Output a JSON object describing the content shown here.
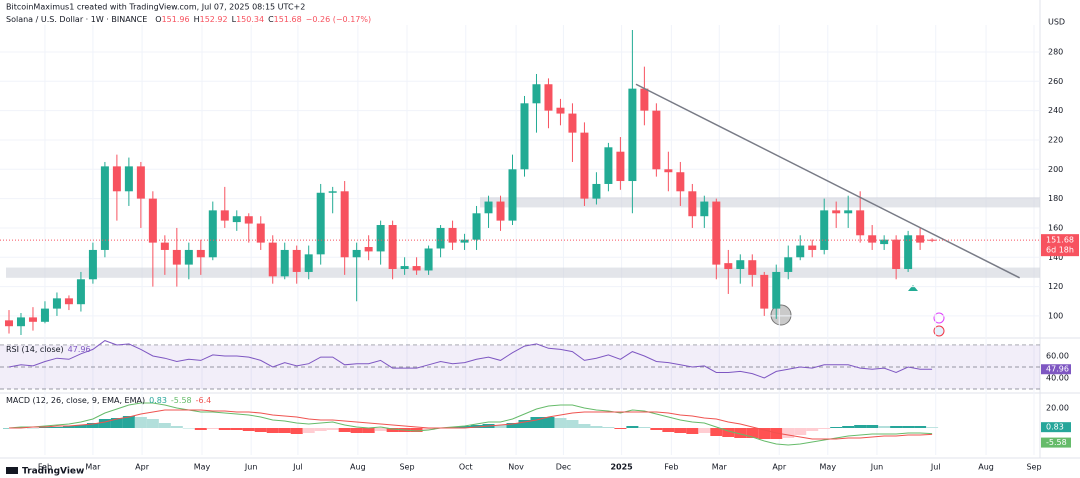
{
  "chart_data": {
    "type": "candlestick",
    "credit": "BitcoinMaximus1 created with TradingView.com, Jul 07, 2025 08:15 UTC+2",
    "title": "Solana / U.S. Dollar · 1W · BINANCE",
    "ohlc_labels": [
      "O",
      "H",
      "L",
      "C"
    ],
    "change": "−0.26 (−0.17%)",
    "currency": "USD",
    "countdown": "6d 18h",
    "brand": "TradingView",
    "up_color": "#22ab94",
    "down_color": "#f7525f",
    "candles": {
      "open": [
        97,
        93,
        99,
        96,
        105,
        112,
        108,
        125,
        145,
        202,
        185,
        202,
        180,
        150,
        145,
        135,
        145,
        140,
        172,
        164,
        168,
        163,
        150,
        127,
        145,
        130,
        142,
        184,
        185,
        140,
        147,
        144,
        162,
        132,
        134,
        131,
        146,
        160,
        150,
        152,
        170,
        178,
        165,
        200,
        245,
        258,
        242,
        238,
        225,
        180,
        190,
        212,
        192,
        255,
        240,
        200,
        198,
        185,
        168,
        178,
        136,
        132,
        138,
        128,
        105,
        130,
        140,
        148,
        145,
        172,
        170,
        172,
        155,
        149,
        152,
        132,
        155,
        151.96
      ],
      "high": [
        104,
        102,
        106,
        110,
        116,
        114,
        130,
        150,
        205,
        210,
        208,
        205,
        185,
        155,
        160,
        150,
        152,
        178,
        188,
        172,
        170,
        168,
        155,
        150,
        148,
        148,
        190,
        188,
        192,
        150,
        155,
        165,
        165,
        140,
        140,
        148,
        162,
        165,
        156,
        175,
        182,
        182,
        210,
        250,
        265,
        262,
        248,
        245,
        232,
        198,
        218,
        222,
        295,
        270,
        245,
        212,
        205,
        190,
        182,
        180,
        145,
        142,
        142,
        130,
        135,
        148,
        155,
        152,
        180,
        178,
        182,
        185,
        162,
        155,
        155,
        158,
        160,
        152.92
      ],
      "low": [
        88,
        87,
        90,
        95,
        100,
        104,
        103,
        122,
        140,
        165,
        175,
        160,
        120,
        128,
        120,
        125,
        128,
        138,
        160,
        158,
        150,
        145,
        122,
        125,
        122,
        125,
        135,
        170,
        128,
        110,
        138,
        135,
        125,
        128,
        128,
        128,
        140,
        145,
        145,
        145,
        160,
        158,
        162,
        195,
        225,
        228,
        230,
        205,
        175,
        176,
        185,
        186,
        170,
        230,
        195,
        185,
        175,
        160,
        160,
        125,
        115,
        122,
        120,
        100,
        98,
        125,
        138,
        140,
        142,
        160,
        160,
        150,
        145,
        145,
        125,
        130,
        145,
        150.34
      ],
      "close": [
        93,
        99,
        96,
        105,
        112,
        108,
        125,
        145,
        202,
        185,
        202,
        180,
        150,
        145,
        135,
        145,
        140,
        172,
        165,
        168,
        163,
        150,
        127,
        145,
        130,
        142,
        184,
        185,
        140,
        145,
        144,
        162,
        132,
        134,
        131,
        146,
        160,
        150,
        152,
        170,
        178,
        165,
        200,
        245,
        258,
        240,
        238,
        225,
        180,
        190,
        215,
        192,
        255,
        240,
        200,
        198,
        185,
        168,
        178,
        135,
        132,
        138,
        128,
        105,
        130,
        140,
        148,
        145,
        172,
        170,
        172,
        155,
        150,
        152,
        132,
        155,
        150,
        151.68
      ]
    },
    "xlim": [
      -0.75,
      86
    ],
    "xticks": [
      {
        "value": 3,
        "label": "Feb"
      },
      {
        "value": 7,
        "label": "Mar"
      },
      {
        "value": 11.1,
        "label": "Apr"
      },
      {
        "value": 16.1,
        "label": "May"
      },
      {
        "value": 20.2,
        "label": "Jun"
      },
      {
        "value": 24.1,
        "label": "Jul"
      },
      {
        "value": 29.1,
        "label": "Aug"
      },
      {
        "value": 33.2,
        "label": "Sep"
      },
      {
        "value": 38.1,
        "label": "Oct"
      },
      {
        "value": 42.3,
        "label": "Nov"
      },
      {
        "value": 46.25,
        "label": "Dec"
      },
      {
        "value": 51.1,
        "label": "2025"
      },
      {
        "value": 55.25,
        "label": "Feb"
      },
      {
        "value": 59.25,
        "label": "Mar"
      },
      {
        "value": 64.25,
        "label": "Apr"
      },
      {
        "value": 68.3,
        "label": "May"
      },
      {
        "value": 72.4,
        "label": "Jun"
      },
      {
        "value": 77.3,
        "label": "Jul"
      },
      {
        "value": 81.5,
        "label": "Aug"
      },
      {
        "value": 85.5,
        "label": "Sep"
      }
    ],
    "ylim": [
      87,
      298.4
    ],
    "yticks": [
      100,
      120,
      140,
      160,
      180,
      200,
      220,
      240,
      260,
      280
    ],
    "zones": [
      {
        "from": 126,
        "to": 133
      },
      {
        "from": 174,
        "to": 181
      }
    ],
    "trendline": {
      "start": [
        52.3,
        258
      ],
      "end": [
        84.3,
        126
      ]
    },
    "rsi": {
      "label": "RSI (14, close)",
      "color": "#7e57c2",
      "values": [
        50,
        52,
        51,
        55,
        58,
        57,
        62,
        66,
        74,
        70,
        71,
        66,
        60,
        58,
        55,
        57,
        56,
        61,
        60,
        60,
        59,
        56,
        50,
        54,
        51,
        53,
        59,
        59,
        52,
        53,
        53,
        56,
        49,
        49,
        49,
        52,
        55,
        53,
        54,
        57,
        59,
        56,
        63,
        69,
        71,
        67,
        66,
        64,
        56,
        58,
        61,
        57,
        64,
        60,
        55,
        54,
        52,
        50,
        51,
        45,
        45,
        46,
        44,
        40,
        46,
        48,
        50,
        49,
        52,
        52,
        52,
        49,
        48,
        49,
        45,
        50,
        48,
        47.96
      ],
      "ylim": [
        26.4,
        74.5
      ],
      "yticks": [
        {
          "value": 60,
          "label": "60.00"
        },
        {
          "value": 40,
          "label": "40.00"
        }
      ],
      "levels": [
        70,
        50,
        30
      ]
    },
    "macd": {
      "label": "MACD (12, 26, close, 9, EMA, EMA)",
      "histogram": [
        0,
        1,
        0,
        1,
        1,
        2,
        3,
        5,
        9,
        10,
        12,
        11,
        9,
        5,
        2,
        0,
        -2,
        -1,
        -2,
        -2,
        -3,
        -4,
        -5,
        -5,
        -6,
        -5,
        -3,
        -2,
        -4,
        -5,
        -5,
        -3,
        -4,
        -4,
        -4,
        -2,
        0,
        1,
        2,
        3,
        4,
        3,
        5,
        8,
        11,
        11,
        10,
        8,
        4,
        2,
        1,
        -1,
        2,
        1,
        -2,
        -4,
        -5,
        -6,
        -5,
        -8,
        -9,
        -10,
        -10,
        -11,
        -11,
        -10,
        -7,
        -3,
        -1,
        1,
        2,
        3,
        3,
        2,
        2,
        2,
        2,
        0.83
      ],
      "macd": [
        0,
        1,
        1,
        2,
        3,
        4,
        6,
        9,
        15,
        19,
        23,
        25,
        25,
        23,
        20,
        18,
        16,
        16,
        15,
        14,
        13,
        11,
        8,
        7,
        5,
        4,
        5,
        6,
        3,
        1,
        0,
        1,
        -1,
        -2,
        -3,
        -2,
        0,
        1,
        2,
        4,
        6,
        6,
        9,
        14,
        19,
        22,
        23,
        23,
        20,
        18,
        17,
        15,
        18,
        17,
        14,
        11,
        8,
        6,
        5,
        1,
        -3,
        -6,
        -9,
        -13,
        -16,
        -17,
        -16,
        -14,
        -12,
        -10,
        -8,
        -7,
        -6,
        -6,
        -6,
        -5,
        -5,
        -5.58
      ],
      "signal": [
        0,
        0,
        1,
        1,
        2,
        2,
        3,
        4,
        6,
        9,
        11,
        14,
        16,
        18,
        18,
        18,
        18,
        17,
        17,
        16,
        16,
        15,
        13,
        12,
        11,
        9,
        8,
        8,
        7,
        6,
        5,
        4,
        3,
        2,
        1,
        0,
        0,
        0,
        0,
        1,
        2,
        3,
        4,
        6,
        8,
        11,
        13,
        15,
        16,
        16,
        16,
        16,
        16,
        16,
        16,
        15,
        13,
        12,
        10,
        9,
        6,
        4,
        1,
        -2,
        -5,
        -7,
        -9,
        -11,
        -11,
        -11,
        -10,
        -10,
        -9,
        -8,
        -8,
        -7,
        -7,
        -6.4
      ],
      "macd_color": "#66bb6a",
      "signal_color": "#ef5350",
      "ylim": [
        -27,
        33
      ],
      "yticks": [
        {
          "value": 20,
          "label": "20.00"
        }
      ]
    }
  }
}
